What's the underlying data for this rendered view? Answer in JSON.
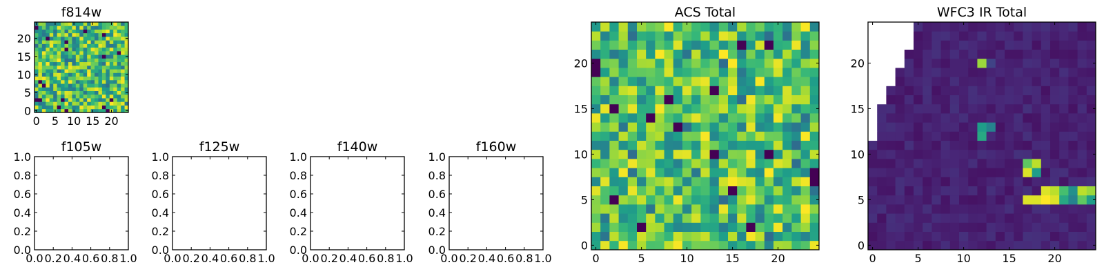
{
  "chart_data": [
    {
      "id": "f814w",
      "type": "heatmap",
      "title": "f814w",
      "grid_size": [
        25,
        25
      ],
      "xlim": [
        -0.5,
        24.5
      ],
      "ylim": [
        -0.5,
        24.5
      ],
      "xticks": [
        0,
        5,
        10,
        15,
        20
      ],
      "yticks": [
        0,
        5,
        10,
        15,
        20
      ],
      "colormap": "viridis",
      "values_note": "random-noise field"
    },
    {
      "id": "f105w",
      "type": "empty",
      "title": "f105w",
      "xlim": [
        0,
        1
      ],
      "ylim": [
        0,
        1
      ],
      "xticks": [
        "0.0",
        "0.2",
        "0.4",
        "0.6",
        "0.8",
        "1.0"
      ],
      "yticks": [
        "0.0",
        "0.2",
        "0.4",
        "0.6",
        "0.8",
        "1.0"
      ]
    },
    {
      "id": "f125w",
      "type": "empty",
      "title": "f125w",
      "xlim": [
        0,
        1
      ],
      "ylim": [
        0,
        1
      ],
      "xticks": [
        "0.0",
        "0.2",
        "0.4",
        "0.6",
        "0.8",
        "1.0"
      ],
      "yticks": [
        "0.0",
        "0.2",
        "0.4",
        "0.6",
        "0.8",
        "1.0"
      ]
    },
    {
      "id": "f140w",
      "type": "empty",
      "title": "f140w",
      "xlim": [
        0,
        1
      ],
      "ylim": [
        0,
        1
      ],
      "xticks": [
        "0.0",
        "0.2",
        "0.4",
        "0.6",
        "0.8",
        "1.0"
      ],
      "yticks": [
        "0.0",
        "0.2",
        "0.4",
        "0.6",
        "0.8",
        "1.0"
      ]
    },
    {
      "id": "f160w",
      "type": "empty",
      "title": "f160w",
      "xlim": [
        0,
        1
      ],
      "ylim": [
        0,
        1
      ],
      "xticks": [
        "0.0",
        "0.2",
        "0.4",
        "0.6",
        "0.8",
        "1.0"
      ],
      "yticks": [
        "0.0",
        "0.2",
        "0.4",
        "0.6",
        "0.8",
        "1.0"
      ]
    },
    {
      "id": "acs",
      "type": "heatmap",
      "title": "ACS Total",
      "grid_size": [
        25,
        25
      ],
      "xlim": [
        -0.5,
        24.5
      ],
      "ylim": [
        -0.5,
        24.5
      ],
      "xticks": [
        0,
        5,
        10,
        15,
        20
      ],
      "yticks": [
        0,
        5,
        10,
        15,
        20
      ],
      "colormap": "viridis"
    },
    {
      "id": "wfc3",
      "type": "heatmap",
      "title": "WFC3 IR Total",
      "grid_size": [
        25,
        25
      ],
      "xlim": [
        -0.5,
        24.5
      ],
      "ylim": [
        -0.5,
        24.5
      ],
      "xticks": [
        0,
        5,
        10,
        15,
        20
      ],
      "yticks": [
        0,
        5,
        10,
        15,
        20
      ],
      "colormap": "viridis",
      "background_level": 0.05,
      "missing_region": "upper-left staircase (NaN, white)",
      "bright_pixels": [
        {
          "x": 12,
          "y": 20,
          "v": 0.85
        },
        {
          "x": 13,
          "y": 20,
          "v": 0.2
        },
        {
          "x": 12,
          "y": 13,
          "v": 0.55
        },
        {
          "x": 13,
          "y": 13,
          "v": 0.45
        },
        {
          "x": 12,
          "y": 12,
          "v": 0.6
        },
        {
          "x": 17,
          "y": 9,
          "v": 0.75
        },
        {
          "x": 18,
          "y": 9,
          "v": 0.9
        },
        {
          "x": 17,
          "y": 8,
          "v": 0.95
        },
        {
          "x": 18,
          "y": 8,
          "v": 0.55
        },
        {
          "x": 19,
          "y": 6,
          "v": 0.95
        },
        {
          "x": 20,
          "y": 6,
          "v": 0.9
        },
        {
          "x": 21,
          "y": 6,
          "v": 0.7
        },
        {
          "x": 22,
          "y": 6,
          "v": 0.5
        },
        {
          "x": 23,
          "y": 6,
          "v": 0.9
        },
        {
          "x": 24,
          "y": 6,
          "v": 0.85
        },
        {
          "x": 17,
          "y": 5,
          "v": 0.95
        },
        {
          "x": 18,
          "y": 5,
          "v": 0.95
        },
        {
          "x": 19,
          "y": 5,
          "v": 1.0
        },
        {
          "x": 20,
          "y": 5,
          "v": 0.95
        },
        {
          "x": 21,
          "y": 5,
          "v": 0.6
        },
        {
          "x": 22,
          "y": 5,
          "v": 0.45
        },
        {
          "x": 23,
          "y": 5,
          "v": 0.75
        },
        {
          "x": 24,
          "y": 5,
          "v": 0.55
        }
      ]
    }
  ]
}
